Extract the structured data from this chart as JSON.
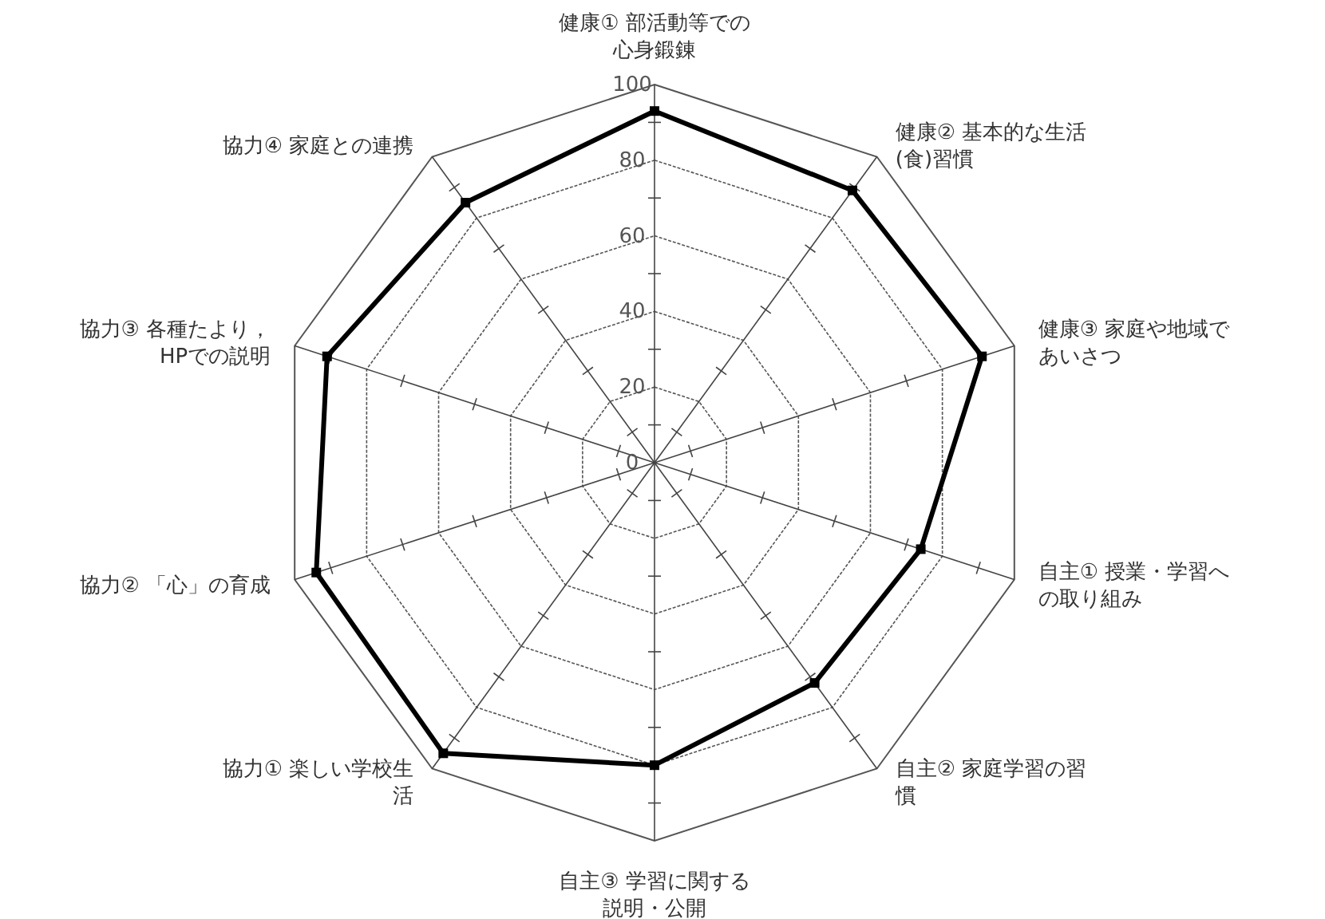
{
  "chart_data": {
    "type": "radar",
    "categories": [
      "健康① 部活動等での心身鍛錬",
      "健康② 基本的な生活(食)習慣",
      "健康③ 家庭や地域であいさつ",
      "自主① 授業・学習への取り組み",
      "自主② 家庭学習の習慣",
      "自主③ 学習に関する説明・公開",
      "協力① 楽しい学校生活",
      "協力② 「心」の育成",
      "協力③ 各種たより，HPでの説明",
      "協力④ 家庭との連携"
    ],
    "series": [
      {
        "color": "#000000",
        "values": [
          93,
          89,
          91,
          74,
          72,
          80,
          95,
          94,
          91,
          85
        ]
      }
    ],
    "ylim": [
      0,
      100
    ],
    "yticks": [
      0,
      20,
      40,
      60,
      80,
      100
    ],
    "grid": true,
    "marker": "square",
    "line_style": "solid"
  }
}
